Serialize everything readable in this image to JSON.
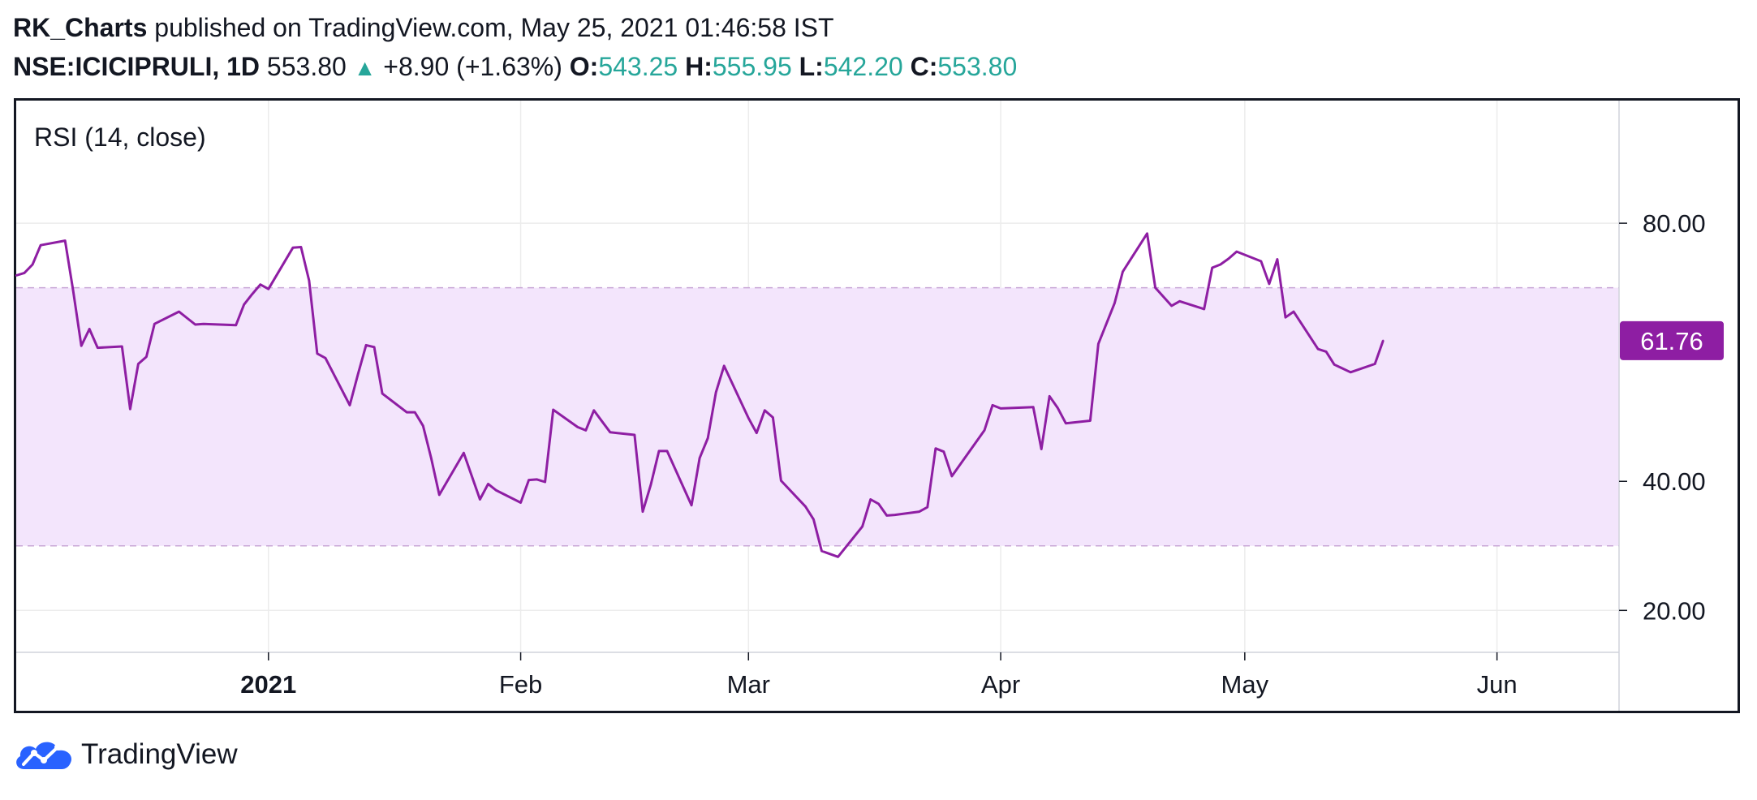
{
  "header": {
    "author": "RK_Charts",
    "published_text": " published on TradingView.com, May 25, 2021 01:46:58 IST",
    "symbol": "NSE:ICICIPRULI, 1D",
    "price": "553.80",
    "change": "+8.90 (+1.63%)",
    "o_label": "O:",
    "o_value": "543.25",
    "h_label": "H:",
    "h_value": "555.95",
    "l_label": "L:",
    "l_value": "542.20",
    "c_label": "C:",
    "c_value": "553.80"
  },
  "colors": {
    "line": "#8e1ea3",
    "band_fill": "#f3e5fc",
    "band_border": "#c9a7d6",
    "grid": "#ececec",
    "badge": "#8e1ea3",
    "up": "#26a69a"
  },
  "footer": {
    "brand": "TradingView",
    "logo_icon": "tradingview-cloud-icon"
  },
  "chart_data": {
    "type": "line",
    "title": "RSI (14, close)",
    "ylim": [
      13.5,
      99
    ],
    "yticks": [
      20,
      40,
      80
    ],
    "ytick_labels": [
      "20.00",
      "40.00",
      "80.00"
    ],
    "band": [
      30,
      70
    ],
    "last_value_label": "61.76",
    "xlim": [
      "2020-12-01",
      "2021-06-16"
    ],
    "xticks": [
      {
        "date": "2021-01-01",
        "label": "2021",
        "bold": true
      },
      {
        "date": "2021-02-01",
        "label": "Feb"
      },
      {
        "date": "2021-03-01",
        "label": "Mar"
      },
      {
        "date": "2021-04-01",
        "label": "Apr"
      },
      {
        "date": "2021-05-01",
        "label": "May"
      },
      {
        "date": "2021-06-01",
        "label": "Jun"
      }
    ],
    "series": [
      {
        "values": [
          {
            "x": "2020-12-01",
            "y": 71.9
          },
          {
            "x": "2020-12-02",
            "y": 72.3
          },
          {
            "x": "2020-12-03",
            "y": 73.6
          },
          {
            "x": "2020-12-04",
            "y": 76.6
          },
          {
            "x": "2020-12-07",
            "y": 77.3
          },
          {
            "x": "2020-12-08",
            "y": 69.5
          },
          {
            "x": "2020-12-09",
            "y": 61.0
          },
          {
            "x": "2020-12-10",
            "y": 63.6
          },
          {
            "x": "2020-12-11",
            "y": 60.7
          },
          {
            "x": "2020-12-14",
            "y": 60.9
          },
          {
            "x": "2020-12-15",
            "y": 51.2
          },
          {
            "x": "2020-12-16",
            "y": 58.2
          },
          {
            "x": "2020-12-17",
            "y": 59.3
          },
          {
            "x": "2020-12-18",
            "y": 64.4
          },
          {
            "x": "2020-12-21",
            "y": 66.3
          },
          {
            "x": "2020-12-22",
            "y": 65.3
          },
          {
            "x": "2020-12-23",
            "y": 64.3
          },
          {
            "x": "2020-12-24",
            "y": 64.4
          },
          {
            "x": "2020-12-28",
            "y": 64.2
          },
          {
            "x": "2020-12-29",
            "y": 67.4
          },
          {
            "x": "2020-12-30",
            "y": 69.0
          },
          {
            "x": "2020-12-31",
            "y": 70.5
          },
          {
            "x": "2021-01-01",
            "y": 69.8
          },
          {
            "x": "2021-01-04",
            "y": 76.2
          },
          {
            "x": "2021-01-05",
            "y": 76.3
          },
          {
            "x": "2021-01-06",
            "y": 71.1
          },
          {
            "x": "2021-01-07",
            "y": 59.8
          },
          {
            "x": "2021-01-08",
            "y": 59.1
          },
          {
            "x": "2021-01-11",
            "y": 51.8
          },
          {
            "x": "2021-01-12",
            "y": 56.6
          },
          {
            "x": "2021-01-13",
            "y": 61.1
          },
          {
            "x": "2021-01-14",
            "y": 60.8
          },
          {
            "x": "2021-01-15",
            "y": 53.6
          },
          {
            "x": "2021-01-18",
            "y": 50.7
          },
          {
            "x": "2021-01-19",
            "y": 50.7
          },
          {
            "x": "2021-01-20",
            "y": 48.6
          },
          {
            "x": "2021-01-21",
            "y": 43.6
          },
          {
            "x": "2021-01-22",
            "y": 37.9
          },
          {
            "x": "2021-01-25",
            "y": 44.4
          },
          {
            "x": "2021-01-27",
            "y": 37.2
          },
          {
            "x": "2021-01-28",
            "y": 39.6
          },
          {
            "x": "2021-01-29",
            "y": 38.6
          },
          {
            "x": "2021-02-01",
            "y": 36.7
          },
          {
            "x": "2021-02-02",
            "y": 40.2
          },
          {
            "x": "2021-02-03",
            "y": 40.3
          },
          {
            "x": "2021-02-04",
            "y": 39.9
          },
          {
            "x": "2021-02-05",
            "y": 51.1
          },
          {
            "x": "2021-02-08",
            "y": 48.4
          },
          {
            "x": "2021-02-09",
            "y": 47.9
          },
          {
            "x": "2021-02-10",
            "y": 51.0
          },
          {
            "x": "2021-02-11",
            "y": 49.3
          },
          {
            "x": "2021-02-12",
            "y": 47.6
          },
          {
            "x": "2021-02-15",
            "y": 47.2
          },
          {
            "x": "2021-02-16",
            "y": 35.3
          },
          {
            "x": "2021-02-17",
            "y": 39.5
          },
          {
            "x": "2021-02-18",
            "y": 44.7
          },
          {
            "x": "2021-02-19",
            "y": 44.7
          },
          {
            "x": "2021-02-22",
            "y": 36.3
          },
          {
            "x": "2021-02-23",
            "y": 43.6
          },
          {
            "x": "2021-02-24",
            "y": 46.7
          },
          {
            "x": "2021-02-25",
            "y": 53.8
          },
          {
            "x": "2021-02-26",
            "y": 57.9
          },
          {
            "x": "2021-03-01",
            "y": 49.8
          },
          {
            "x": "2021-03-02",
            "y": 47.5
          },
          {
            "x": "2021-03-03",
            "y": 51.0
          },
          {
            "x": "2021-03-04",
            "y": 49.9
          },
          {
            "x": "2021-03-05",
            "y": 40.1
          },
          {
            "x": "2021-03-08",
            "y": 36.1
          },
          {
            "x": "2021-03-09",
            "y": 34.1
          },
          {
            "x": "2021-03-10",
            "y": 29.2
          },
          {
            "x": "2021-03-12",
            "y": 28.3
          },
          {
            "x": "2021-03-15",
            "y": 33.0
          },
          {
            "x": "2021-03-16",
            "y": 37.2
          },
          {
            "x": "2021-03-17",
            "y": 36.5
          },
          {
            "x": "2021-03-18",
            "y": 34.7
          },
          {
            "x": "2021-03-19",
            "y": 34.8
          },
          {
            "x": "2021-03-22",
            "y": 35.3
          },
          {
            "x": "2021-03-23",
            "y": 36.0
          },
          {
            "x": "2021-03-24",
            "y": 45.1
          },
          {
            "x": "2021-03-25",
            "y": 44.6
          },
          {
            "x": "2021-03-26",
            "y": 40.8
          },
          {
            "x": "2021-03-30",
            "y": 47.9
          },
          {
            "x": "2021-03-31",
            "y": 51.8
          },
          {
            "x": "2021-04-01",
            "y": 51.3
          },
          {
            "x": "2021-04-05",
            "y": 51.5
          },
          {
            "x": "2021-04-06",
            "y": 45.0
          },
          {
            "x": "2021-04-07",
            "y": 53.2
          },
          {
            "x": "2021-04-08",
            "y": 51.4
          },
          {
            "x": "2021-04-09",
            "y": 49.0
          },
          {
            "x": "2021-04-12",
            "y": 49.4
          },
          {
            "x": "2021-04-13",
            "y": 61.3
          },
          {
            "x": "2021-04-15",
            "y": 67.6
          },
          {
            "x": "2021-04-16",
            "y": 72.5
          },
          {
            "x": "2021-04-19",
            "y": 78.4
          },
          {
            "x": "2021-04-20",
            "y": 70.0
          },
          {
            "x": "2021-04-22",
            "y": 67.2
          },
          {
            "x": "2021-04-23",
            "y": 67.9
          },
          {
            "x": "2021-04-26",
            "y": 66.7
          },
          {
            "x": "2021-04-27",
            "y": 73.1
          },
          {
            "x": "2021-04-28",
            "y": 73.6
          },
          {
            "x": "2021-04-29",
            "y": 74.5
          },
          {
            "x": "2021-04-30",
            "y": 75.6
          },
          {
            "x": "2021-05-03",
            "y": 74.1
          },
          {
            "x": "2021-05-04",
            "y": 70.6
          },
          {
            "x": "2021-05-05",
            "y": 74.4
          },
          {
            "x": "2021-05-06",
            "y": 65.4
          },
          {
            "x": "2021-05-07",
            "y": 66.3
          },
          {
            "x": "2021-05-10",
            "y": 60.5
          },
          {
            "x": "2021-05-11",
            "y": 60.1
          },
          {
            "x": "2021-05-12",
            "y": 58.1
          },
          {
            "x": "2021-05-14",
            "y": 56.9
          },
          {
            "x": "2021-05-17",
            "y": 58.2
          },
          {
            "x": "2021-05-18",
            "y": 61.8
          }
        ]
      }
    ]
  }
}
